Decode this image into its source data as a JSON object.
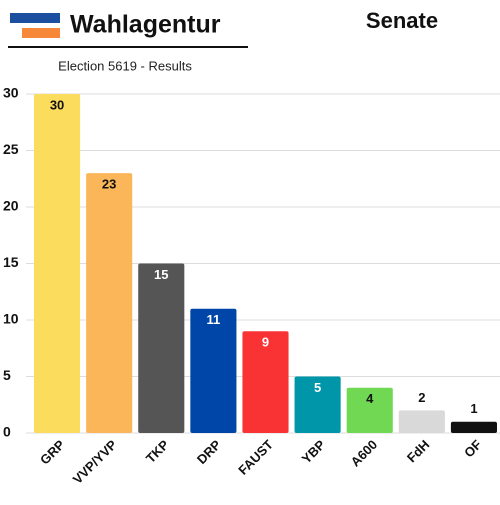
{
  "chart_data": {
    "type": "bar",
    "brand": "Wahlagentur",
    "title": "Senate",
    "subtitle": "Election 5619 - Results",
    "categories": [
      "GRP",
      "VVP/YVP",
      "TKP",
      "DRP",
      "FAUST",
      "YBP",
      "A600",
      "FdH",
      "OF"
    ],
    "values": [
      30,
      23,
      15,
      11,
      9,
      5,
      4,
      2,
      1
    ],
    "colors": [
      "#fcdc5c",
      "#fbb65a",
      "#555555",
      "#0046a8",
      "#f93333",
      "#0096aa",
      "#71d854",
      "#d9d9d9",
      "#111111"
    ],
    "ylim": [
      0,
      30
    ],
    "yticks": [
      0,
      5,
      10,
      15,
      20,
      25,
      30
    ],
    "grid": true
  }
}
